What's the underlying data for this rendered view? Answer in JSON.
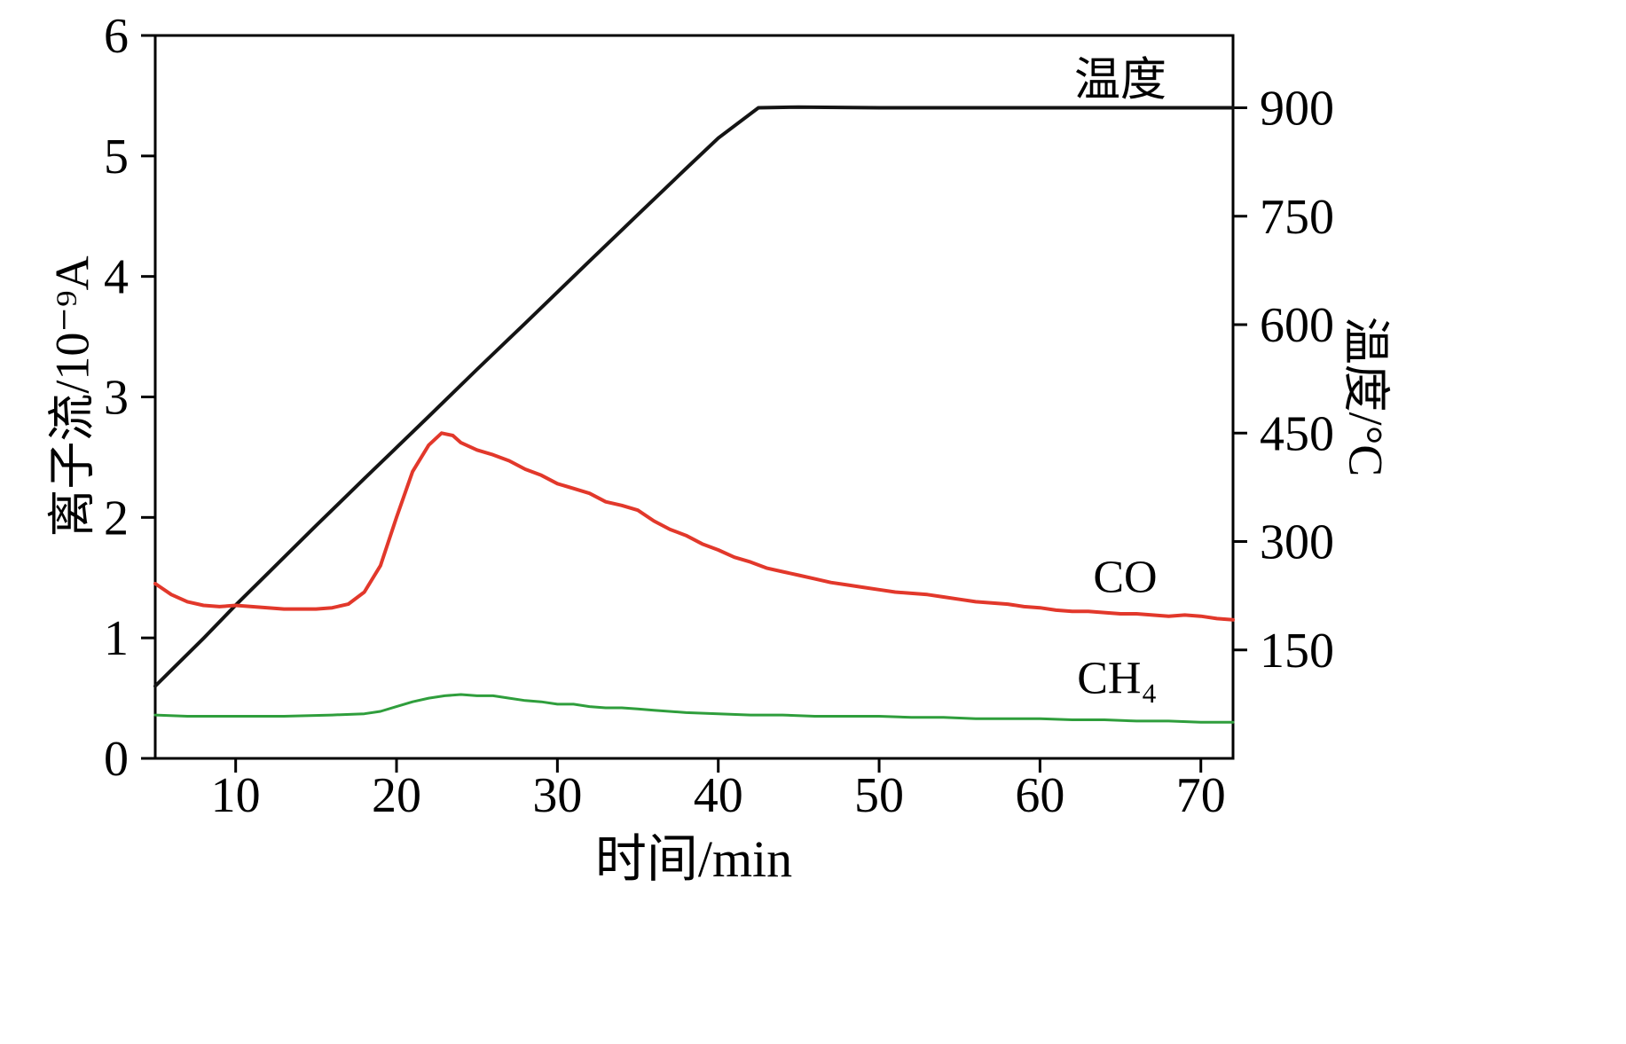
{
  "chart_data": {
    "type": "line",
    "title": "",
    "xlabel": "时间/min",
    "ylabel_left": "离子流/10⁻⁹A",
    "ylabel_right": "温度/°C",
    "xlim": [
      5,
      72
    ],
    "ylim_left": [
      0,
      6
    ],
    "ylim_right": [
      0,
      1000
    ],
    "x_ticks": [
      10,
      20,
      30,
      40,
      50,
      60,
      70
    ],
    "y_ticks_left": [
      0,
      1,
      2,
      3,
      4,
      5,
      6
    ],
    "y_ticks_right": [
      150,
      300,
      450,
      600,
      750,
      900
    ],
    "grid": false,
    "legend_position": "inline-annotations",
    "series": [
      {
        "id": "temperature",
        "name": "温度",
        "axis": "right",
        "color": "#141414",
        "width": 4,
        "points": [
          [
            5,
            100
          ],
          [
            6,
            122
          ],
          [
            8,
            166
          ],
          [
            10,
            212
          ],
          [
            12,
            256
          ],
          [
            15,
            322
          ],
          [
            18,
            387
          ],
          [
            20,
            430
          ],
          [
            22,
            473
          ],
          [
            25,
            538
          ],
          [
            28,
            602
          ],
          [
            30,
            645
          ],
          [
            32,
            688
          ],
          [
            35,
            752
          ],
          [
            38,
            816
          ],
          [
            40,
            858
          ],
          [
            42.5,
            900
          ],
          [
            45,
            901
          ],
          [
            50,
            900
          ],
          [
            55,
            900
          ],
          [
            60,
            900
          ],
          [
            65,
            900
          ],
          [
            70,
            900
          ],
          [
            72,
            900
          ]
        ]
      },
      {
        "id": "co",
        "name": "CO",
        "axis": "left",
        "color": "#e2382b",
        "width": 4,
        "points": [
          [
            5,
            1.45
          ],
          [
            6,
            1.36
          ],
          [
            7,
            1.3
          ],
          [
            8,
            1.27
          ],
          [
            9,
            1.26
          ],
          [
            10,
            1.27
          ],
          [
            11,
            1.26
          ],
          [
            12,
            1.25
          ],
          [
            13,
            1.24
          ],
          [
            14,
            1.24
          ],
          [
            15,
            1.24
          ],
          [
            16,
            1.25
          ],
          [
            17,
            1.28
          ],
          [
            18,
            1.38
          ],
          [
            19,
            1.6
          ],
          [
            20,
            2.0
          ],
          [
            21,
            2.38
          ],
          [
            22,
            2.6
          ],
          [
            22.8,
            2.7
          ],
          [
            23.5,
            2.68
          ],
          [
            24,
            2.62
          ],
          [
            25,
            2.56
          ],
          [
            26,
            2.52
          ],
          [
            27,
            2.47
          ],
          [
            28,
            2.4
          ],
          [
            29,
            2.35
          ],
          [
            30,
            2.28
          ],
          [
            31,
            2.24
          ],
          [
            32,
            2.2
          ],
          [
            33,
            2.13
          ],
          [
            34,
            2.1
          ],
          [
            35,
            2.06
          ],
          [
            36,
            1.97
          ],
          [
            37,
            1.9
          ],
          [
            38,
            1.85
          ],
          [
            39,
            1.78
          ],
          [
            40,
            1.73
          ],
          [
            41,
            1.67
          ],
          [
            42,
            1.63
          ],
          [
            43,
            1.58
          ],
          [
            44,
            1.55
          ],
          [
            45,
            1.52
          ],
          [
            46,
            1.49
          ],
          [
            47,
            1.46
          ],
          [
            48,
            1.44
          ],
          [
            49,
            1.42
          ],
          [
            50,
            1.4
          ],
          [
            51,
            1.38
          ],
          [
            52,
            1.37
          ],
          [
            53,
            1.36
          ],
          [
            54,
            1.34
          ],
          [
            55,
            1.32
          ],
          [
            56,
            1.3
          ],
          [
            57,
            1.29
          ],
          [
            58,
            1.28
          ],
          [
            59,
            1.26
          ],
          [
            60,
            1.25
          ],
          [
            61,
            1.23
          ],
          [
            62,
            1.22
          ],
          [
            63,
            1.22
          ],
          [
            64,
            1.21
          ],
          [
            65,
            1.2
          ],
          [
            66,
            1.2
          ],
          [
            67,
            1.19
          ],
          [
            68,
            1.18
          ],
          [
            69,
            1.19
          ],
          [
            70,
            1.18
          ],
          [
            71,
            1.16
          ],
          [
            72,
            1.15
          ]
        ]
      },
      {
        "id": "ch4",
        "name": "CH₄",
        "axis": "left",
        "color": "#2f9e3c",
        "width": 3,
        "points": [
          [
            5,
            0.36
          ],
          [
            7,
            0.35
          ],
          [
            10,
            0.35
          ],
          [
            13,
            0.35
          ],
          [
            16,
            0.36
          ],
          [
            18,
            0.37
          ],
          [
            19,
            0.39
          ],
          [
            20,
            0.43
          ],
          [
            21,
            0.47
          ],
          [
            22,
            0.5
          ],
          [
            23,
            0.52
          ],
          [
            24,
            0.53
          ],
          [
            25,
            0.52
          ],
          [
            26,
            0.52
          ],
          [
            27,
            0.5
          ],
          [
            28,
            0.48
          ],
          [
            29,
            0.47
          ],
          [
            30,
            0.45
          ],
          [
            31,
            0.45
          ],
          [
            32,
            0.43
          ],
          [
            33,
            0.42
          ],
          [
            34,
            0.42
          ],
          [
            35,
            0.41
          ],
          [
            36,
            0.4
          ],
          [
            38,
            0.38
          ],
          [
            40,
            0.37
          ],
          [
            42,
            0.36
          ],
          [
            44,
            0.36
          ],
          [
            46,
            0.35
          ],
          [
            48,
            0.35
          ],
          [
            50,
            0.35
          ],
          [
            52,
            0.34
          ],
          [
            54,
            0.34
          ],
          [
            56,
            0.33
          ],
          [
            58,
            0.33
          ],
          [
            60,
            0.33
          ],
          [
            62,
            0.32
          ],
          [
            64,
            0.32
          ],
          [
            66,
            0.31
          ],
          [
            68,
            0.31
          ],
          [
            70,
            0.3
          ],
          [
            72,
            0.3
          ]
        ]
      }
    ],
    "annotations": [
      {
        "text": "温度",
        "x": 65.0,
        "y": 5.67
      },
      {
        "text": "CO",
        "x": 65.3,
        "y": 1.5
      },
      {
        "text": "CH₄",
        "x": 64.8,
        "y": 0.66
      }
    ]
  }
}
